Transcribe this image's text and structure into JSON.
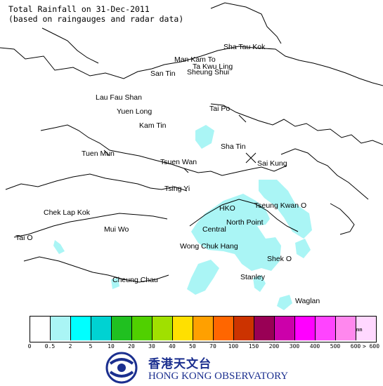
{
  "title": {
    "line1": "Total Rainfall on 31-Dec-2011",
    "line2": "(based on raingauges and radar data)"
  },
  "places": [
    {
      "name": "Sha Tau Kok"
    },
    {
      "name": "Man Kam To"
    },
    {
      "name": "Ta Kwu Ling"
    },
    {
      "name": "San Tin"
    },
    {
      "name": "Sheung Shui"
    },
    {
      "name": "Lau Fau Shan"
    },
    {
      "name": "Yuen Long"
    },
    {
      "name": "Tai Po"
    },
    {
      "name": "Kam Tin"
    },
    {
      "name": "Tuen Mun"
    },
    {
      "name": "Sha Tin"
    },
    {
      "name": "Tsuen Wan"
    },
    {
      "name": "Sai Kung"
    },
    {
      "name": "Tsing Yi"
    },
    {
      "name": "Chek Lap Kok"
    },
    {
      "name": "HKO"
    },
    {
      "name": "Tseung Kwan O"
    },
    {
      "name": "Mui Wo"
    },
    {
      "name": "North Point"
    },
    {
      "name": "Central"
    },
    {
      "name": "Tai O"
    },
    {
      "name": "Wong Chuk Hang"
    },
    {
      "name": "Shek O"
    },
    {
      "name": "Cheung Chau"
    },
    {
      "name": "Stanley"
    },
    {
      "name": "Waglan"
    }
  ],
  "legend": {
    "unit": "mm",
    "colors": [
      "#ffffff",
      "#aaf5f5",
      "#00ffff",
      "#00d2d2",
      "#20c020",
      "#50d000",
      "#a0e000",
      "#ffe000",
      "#ffa000",
      "#ff6600",
      "#cc3300",
      "#990055",
      "#cc00aa",
      "#ff00ff",
      "#ff44ff",
      "#ff88ee",
      "#ffd8ff"
    ],
    "ticks": [
      "0",
      "0.5",
      "2",
      "5",
      "10",
      "20",
      "30",
      "40",
      "50",
      "70",
      "100",
      "150",
      "200",
      "300",
      "400",
      "500",
      "600",
      "> 600"
    ]
  },
  "rain_fill_color": "#aaf5f5",
  "logo": {
    "chinese": "香港天文台",
    "english": "HONG KONG OBSERVATORY",
    "brand_color": "#1b2f8f"
  }
}
